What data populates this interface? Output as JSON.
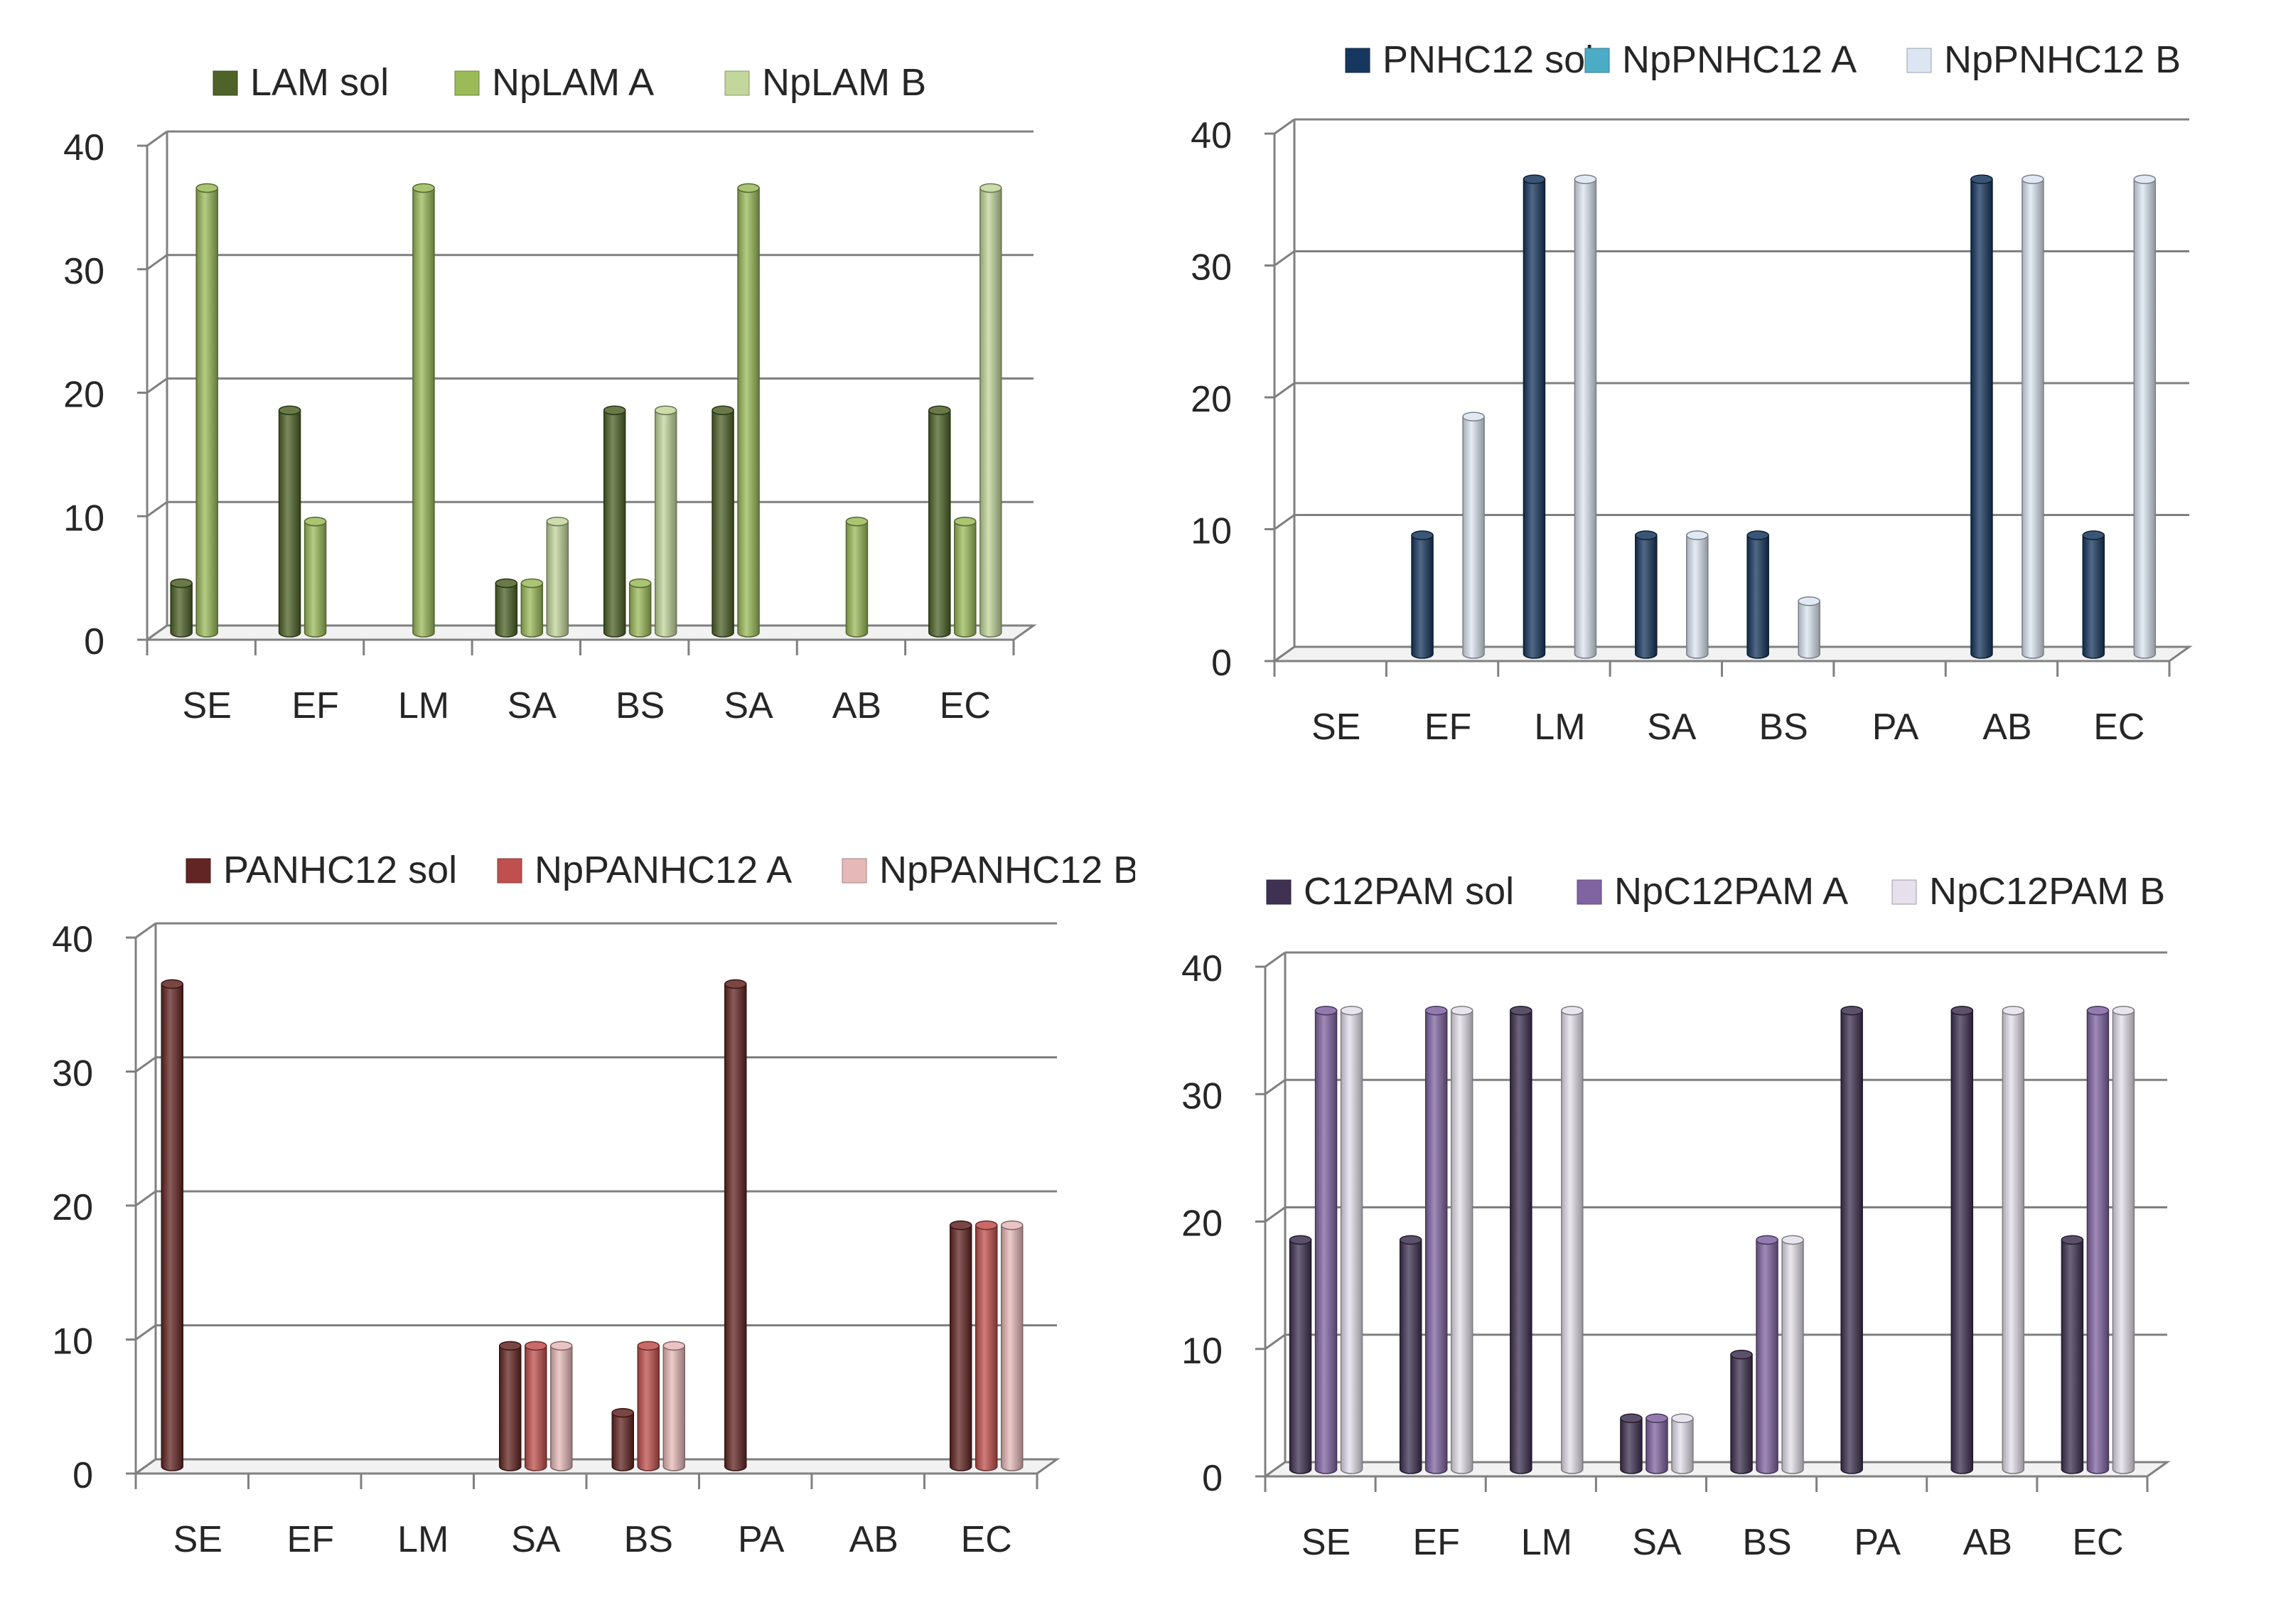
{
  "chart_data": [
    {
      "type": "bar",
      "categories": [
        "SE",
        "EF",
        "LM",
        "SA",
        "BS",
        "SA",
        "AB",
        "EC"
      ],
      "series": [
        {
          "name": "LAM sol",
          "color": "#4f6228",
          "values": [
            4,
            18,
            0,
            4,
            18,
            18,
            0,
            18
          ]
        },
        {
          "name": "NpLAM A",
          "color": "#9bbb59",
          "values": [
            36,
            9,
            36,
            4,
            4,
            36,
            9,
            9
          ]
        },
        {
          "name": "NpLAM B",
          "color": "#c3d69b",
          "values": [
            0,
            0,
            0,
            9,
            18,
            0,
            0,
            36
          ]
        }
      ],
      "yticks": [
        "0",
        "10",
        "20",
        "30",
        "40"
      ],
      "ylim": [
        0,
        40
      ],
      "legend_position": "top",
      "grid": true
    },
    {
      "type": "bar",
      "categories": [
        "SE",
        "EF",
        "LM",
        "SA",
        "BS",
        "PA",
        "AB",
        "EC"
      ],
      "series": [
        {
          "name": "PNHC12 sol",
          "color": "#17375e",
          "values": [
            0,
            9,
            36,
            9,
            9,
            0,
            36,
            9
          ]
        },
        {
          "name": "NpPNHC12 A",
          "color": "#4bacc6",
          "values": [
            0,
            0,
            0,
            0,
            0,
            0,
            0,
            0
          ]
        },
        {
          "name": "NpPNHC12 B",
          "color": "#dce6f2",
          "values": [
            0,
            18,
            36,
            9,
            4,
            0,
            36,
            36
          ]
        }
      ],
      "yticks": [
        "0",
        "10",
        "20",
        "30",
        "40"
      ],
      "ylim": [
        0,
        40
      ],
      "legend_position": "top",
      "grid": true
    },
    {
      "type": "bar",
      "categories": [
        "SE",
        "EF",
        "LM",
        "SA",
        "BS",
        "PA",
        "AB",
        "EC"
      ],
      "series": [
        {
          "name": "PANHC12 sol",
          "color": "#632523",
          "values": [
            36,
            0,
            0,
            9,
            4,
            36,
            0,
            18
          ]
        },
        {
          "name": "NpPANHC12 A",
          "color": "#c0504d",
          "values": [
            0,
            0,
            0,
            9,
            9,
            0,
            0,
            18
          ]
        },
        {
          "name": "NpPANHC12 B",
          "color": "#e6b9b8",
          "values": [
            0,
            0,
            0,
            9,
            9,
            0,
            0,
            18
          ]
        }
      ],
      "yticks": [
        "0",
        "10",
        "20",
        "30",
        "40"
      ],
      "ylim": [
        0,
        40
      ],
      "legend_position": "top",
      "grid": true
    },
    {
      "type": "bar",
      "categories": [
        "SE",
        "EF",
        "LM",
        "SA",
        "BS",
        "PA",
        "AB",
        "EC"
      ],
      "series": [
        {
          "name": "C12PAM sol",
          "color": "#3f3151",
          "values": [
            18,
            18,
            36,
            4,
            9,
            36,
            36,
            18
          ]
        },
        {
          "name": "NpC12PAM A",
          "color": "#8064a2",
          "values": [
            36,
            36,
            0,
            4,
            18,
            0,
            0,
            36
          ]
        },
        {
          "name": "NpC12PAM B",
          "color": "#e5e0ec",
          "values": [
            36,
            36,
            36,
            4,
            18,
            0,
            36,
            36
          ]
        }
      ],
      "yticks": [
        "0",
        "10",
        "20",
        "30",
        "40"
      ],
      "ylim": [
        0,
        40
      ],
      "legend_position": "top",
      "grid": true
    }
  ]
}
